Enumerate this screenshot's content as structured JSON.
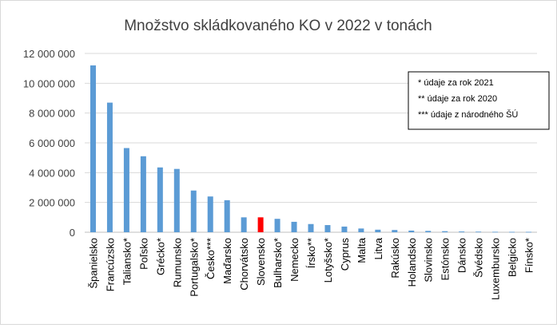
{
  "chart_data": {
    "type": "bar",
    "title": "Množstvo skládkovaného KO v 2022 v tonách",
    "xlabel": "",
    "ylabel": "",
    "ylim": [
      0,
      12000000
    ],
    "yticks": [
      0,
      2000000,
      4000000,
      6000000,
      8000000,
      10000000,
      12000000
    ],
    "ytick_labels": [
      "0",
      "2 000 000",
      "4 000 000",
      "6 000 000",
      "8 000 000",
      "10 000 000",
      "12 000 000"
    ],
    "grid": true,
    "categories": [
      "Španielsko",
      "Francúzsko",
      "Taliansko*",
      "Poľsko",
      "Grécko*",
      "Rumunsko",
      "Portugalsko*",
      "Česko***",
      "Maďarsko",
      "Chorvátsko",
      "Slovensko",
      "Bulharsko*",
      "Nemecko",
      "Írsko**",
      "Lotyšsko*",
      "Cyprus",
      "Malta",
      "Litva",
      "Rakúsko",
      "Holandsko",
      "Slovinsko",
      "Estónsko",
      "Dánsko",
      "Švédsko",
      "Luxembursko",
      "Belgicko",
      "Fínsko*"
    ],
    "values": [
      11200000,
      8700000,
      5650000,
      5100000,
      4350000,
      4250000,
      2800000,
      2400000,
      2150000,
      1000000,
      1000000,
      900000,
      700000,
      550000,
      480000,
      380000,
      250000,
      170000,
      150000,
      110000,
      90000,
      70000,
      50000,
      40000,
      30000,
      25000,
      25000
    ],
    "highlight_index": 10,
    "colors": {
      "bar": "#5b9bd5",
      "highlight": "#ff0000",
      "grid": "#d9d9d9"
    },
    "annotations": [
      "* údaje za rok 2021",
      "** údaje za rok 2020",
      "*** údaje z národného ŠÚ"
    ],
    "annotation_position": "top-right"
  }
}
